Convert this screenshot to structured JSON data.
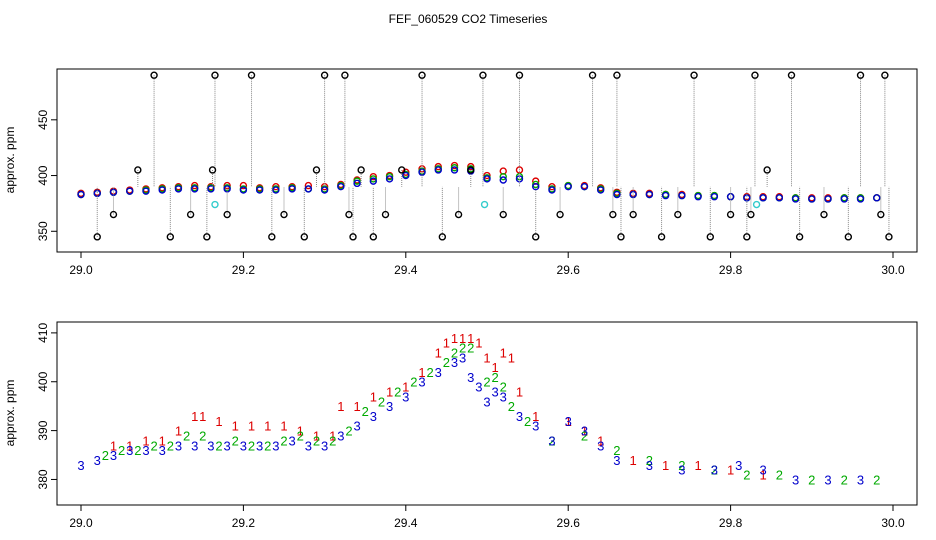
{
  "title": "FEF_060529  CO2 Timeseries",
  "chart_data": [
    {
      "type": "scatter",
      "ylabel": "approx. ppm",
      "xlim": [
        29.0,
        30.0
      ],
      "ylim": [
        335,
        492
      ],
      "xticks": [
        "29.0",
        "29.2",
        "29.4",
        "29.6",
        "29.8",
        "30.0"
      ],
      "yticks": [
        "350",
        "400",
        "450"
      ],
      "series": [
        {
          "name": "red",
          "color": "#dd0000",
          "x": [
            29.0,
            29.02,
            29.04,
            29.06,
            29.08,
            29.1,
            29.12,
            29.14,
            29.16,
            29.18,
            29.2,
            29.22,
            29.24,
            29.26,
            29.28,
            29.3,
            29.32,
            29.34,
            29.36,
            29.38,
            29.4,
            29.42,
            29.44,
            29.46,
            29.48,
            29.5,
            29.52,
            29.54,
            29.56,
            29.58,
            29.6,
            29.62,
            29.64,
            29.66,
            29.68,
            29.7,
            29.72,
            29.74,
            29.76,
            29.78,
            29.8,
            29.82,
            29.84,
            29.86,
            29.88,
            29.9,
            29.92,
            29.94,
            29.96,
            29.98
          ],
          "y": [
            384,
            385,
            386,
            387,
            388,
            389,
            390,
            391,
            390,
            391,
            391,
            389,
            390,
            390,
            391,
            390,
            392,
            396,
            399,
            400,
            403,
            406,
            408,
            409,
            408,
            400,
            404,
            405,
            395,
            390,
            391,
            391,
            389,
            385,
            384,
            384,
            383,
            383,
            382,
            382,
            381,
            381,
            381,
            381,
            380,
            380,
            380,
            380,
            380,
            380
          ]
        },
        {
          "name": "green",
          "color": "#00aa00",
          "x": [
            29.0,
            29.02,
            29.04,
            29.06,
            29.08,
            29.1,
            29.12,
            29.14,
            29.16,
            29.18,
            29.2,
            29.22,
            29.24,
            29.26,
            29.28,
            29.3,
            29.32,
            29.34,
            29.36,
            29.38,
            29.4,
            29.42,
            29.44,
            29.46,
            29.48,
            29.5,
            29.52,
            29.54,
            29.56,
            29.58,
            29.6,
            29.62,
            29.64,
            29.66,
            29.68,
            29.7,
            29.72,
            29.74,
            29.76,
            29.78,
            29.8,
            29.82,
            29.84,
            29.86,
            29.88,
            29.9,
            29.92,
            29.94,
            29.96,
            29.98
          ],
          "y": [
            383,
            384,
            385,
            386,
            387,
            388,
            389,
            389,
            389,
            389,
            388,
            388,
            388,
            389,
            388,
            388,
            391,
            395,
            397,
            399,
            401,
            404,
            406,
            407,
            406,
            398,
            399,
            399,
            392,
            388,
            391,
            390,
            388,
            384,
            383,
            383,
            383,
            382,
            382,
            382,
            381,
            380,
            380,
            380,
            380,
            379,
            379,
            380,
            380,
            380
          ]
        },
        {
          "name": "blue",
          "color": "#0000cc",
          "x": [
            29.0,
            29.02,
            29.04,
            29.06,
            29.08,
            29.1,
            29.12,
            29.14,
            29.16,
            29.18,
            29.2,
            29.22,
            29.24,
            29.26,
            29.28,
            29.3,
            29.32,
            29.34,
            29.36,
            29.38,
            29.4,
            29.42,
            29.44,
            29.46,
            29.48,
            29.5,
            29.52,
            29.54,
            29.56,
            29.58,
            29.6,
            29.62,
            29.64,
            29.66,
            29.68,
            29.7,
            29.72,
            29.74,
            29.76,
            29.78,
            29.8,
            29.82,
            29.84,
            29.86,
            29.88,
            29.9,
            29.92,
            29.94,
            29.96,
            29.98
          ],
          "y": [
            383,
            384,
            385,
            386,
            386,
            387,
            388,
            388,
            388,
            388,
            387,
            387,
            387,
            388,
            388,
            387,
            390,
            393,
            395,
            397,
            400,
            403,
            405,
            405,
            404,
            397,
            396,
            397,
            390,
            387,
            390,
            390,
            387,
            383,
            383,
            383,
            382,
            382,
            381,
            381,
            381,
            380,
            380,
            380,
            379,
            379,
            379,
            379,
            379,
            380
          ]
        },
        {
          "name": "black",
          "color": "#000000",
          "x": [
            29.02,
            29.04,
            29.07,
            29.09,
            29.11,
            29.135,
            29.155,
            29.162,
            29.165,
            29.18,
            29.21,
            29.235,
            29.25,
            29.275,
            29.29,
            29.3,
            29.325,
            29.33,
            29.335,
            29.345,
            29.36,
            29.375,
            29.395,
            29.42,
            29.445,
            29.465,
            29.48,
            29.495,
            29.52,
            29.54,
            29.56,
            29.59,
            29.63,
            29.655,
            29.66,
            29.665,
            29.68,
            29.715,
            29.735,
            29.755,
            29.775,
            29.8,
            29.82,
            29.825,
            29.83,
            29.845,
            29.875,
            29.885,
            29.915,
            29.945,
            29.96,
            29.985,
            29.99,
            29.995
          ],
          "y": [
            345,
            365,
            405,
            490,
            345,
            365,
            345,
            405,
            490,
            365,
            490,
            345,
            365,
            345,
            405,
            490,
            490,
            365,
            345,
            405,
            345,
            365,
            405,
            490,
            345,
            365,
            405,
            490,
            365,
            490,
            345,
            365,
            490,
            365,
            490,
            345,
            365,
            345,
            365,
            490,
            345,
            365,
            345,
            365,
            490,
            405,
            490,
            345,
            365,
            345,
            490,
            365,
            490,
            345
          ]
        },
        {
          "name": "cyan",
          "color": "#33cccc",
          "x": [
            29.165,
            29.497,
            29.832
          ],
          "y": [
            374,
            374,
            374
          ]
        }
      ]
    },
    {
      "type": "scatter",
      "ylabel": "approx. ppm",
      "xlim": [
        29.0,
        30.0
      ],
      "ylim": [
        376,
        411
      ],
      "xticks": [
        "29.0",
        "29.2",
        "29.4",
        "29.6",
        "29.8",
        "30.0"
      ],
      "yticks": [
        "380",
        "390",
        "400",
        "410"
      ],
      "series": [
        {
          "name": "1",
          "label": "1",
          "color": "#dd0000",
          "x": [
            29.04,
            29.06,
            29.08,
            29.1,
            29.12,
            29.14,
            29.15,
            29.17,
            29.19,
            29.21,
            29.23,
            29.25,
            29.27,
            29.29,
            29.31,
            29.32,
            29.34,
            29.36,
            29.38,
            29.4,
            29.42,
            29.44,
            29.45,
            29.46,
            29.47,
            29.48,
            29.49,
            29.5,
            29.51,
            29.52,
            29.53,
            29.54,
            29.56,
            29.6,
            29.62,
            29.64,
            29.68,
            29.72,
            29.76,
            29.8,
            29.84
          ],
          "y": [
            387,
            387,
            388,
            388,
            390,
            393,
            393,
            392,
            391,
            391,
            391,
            391,
            390,
            389,
            389,
            395,
            395,
            397,
            398,
            399,
            402,
            406,
            408,
            409,
            409,
            409,
            408,
            405,
            403,
            406,
            405,
            398,
            393,
            392,
            390,
            388,
            384,
            383,
            383,
            382,
            381
          ]
        },
        {
          "name": "2",
          "label": "2",
          "color": "#00aa00",
          "x": [
            29.03,
            29.05,
            29.07,
            29.09,
            29.11,
            29.13,
            29.15,
            29.17,
            29.19,
            29.21,
            29.23,
            29.25,
            29.27,
            29.29,
            29.31,
            29.33,
            29.35,
            29.37,
            29.39,
            29.41,
            29.43,
            29.45,
            29.46,
            29.47,
            29.48,
            29.5,
            29.51,
            29.52,
            29.53,
            29.55,
            29.58,
            29.62,
            29.66,
            29.7,
            29.74,
            29.78,
            29.82,
            29.86,
            29.9,
            29.94,
            29.98
          ],
          "y": [
            385,
            386,
            386,
            387,
            387,
            389,
            389,
            387,
            388,
            387,
            387,
            388,
            389,
            388,
            388,
            390,
            394,
            396,
            398,
            400,
            402,
            404,
            406,
            407,
            407,
            400,
            401,
            399,
            395,
            392,
            388,
            389,
            386,
            384,
            383,
            382,
            381,
            381,
            380,
            380,
            380
          ]
        },
        {
          "name": "3",
          "label": "3",
          "color": "#0000cc",
          "x": [
            29.0,
            29.02,
            29.04,
            29.06,
            29.08,
            29.1,
            29.12,
            29.14,
            29.16,
            29.18,
            29.2,
            29.22,
            29.24,
            29.26,
            29.28,
            29.3,
            29.32,
            29.34,
            29.36,
            29.38,
            29.4,
            29.42,
            29.44,
            29.46,
            29.47,
            29.48,
            29.49,
            29.5,
            29.51,
            29.52,
            29.54,
            29.56,
            29.58,
            29.6,
            29.62,
            29.64,
            29.66,
            29.7,
            29.74,
            29.78,
            29.81,
            29.84,
            29.88,
            29.92,
            29.96
          ],
          "y": [
            383,
            384,
            385,
            386,
            386,
            386,
            387,
            387,
            387,
            387,
            387,
            387,
            387,
            388,
            387,
            387,
            389,
            391,
            393,
            395,
            397,
            400,
            402,
            404,
            405,
            401,
            399,
            396,
            398,
            397,
            393,
            391,
            388,
            392,
            390,
            387,
            384,
            383,
            382,
            382,
            383,
            382,
            380,
            380,
            380
          ]
        }
      ]
    }
  ]
}
